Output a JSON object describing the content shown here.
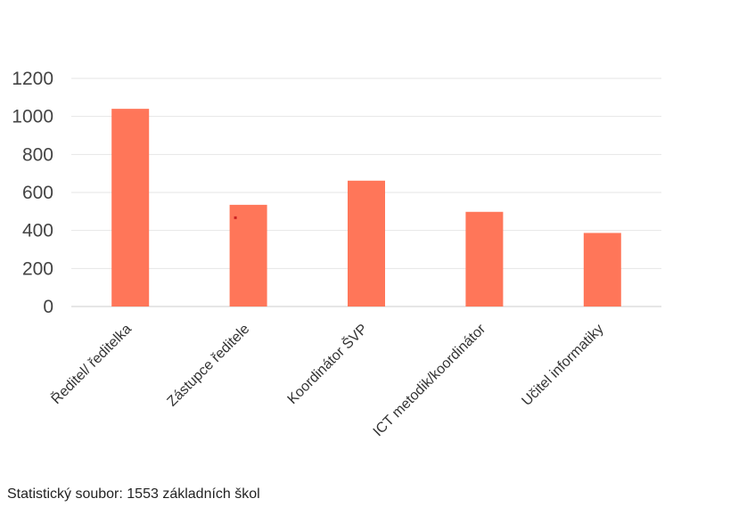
{
  "chart_data": {
    "type": "bar",
    "categories": [
      "Ředitel/ ředitelka",
      "Zástupce ředitele",
      "Koordinátor ŠVP",
      "ICT metodik/koordinátor",
      "Učitel informatiky"
    ],
    "values": [
      1040,
      535,
      662,
      498,
      387
    ],
    "ylim": [
      0,
      1200
    ],
    "yticks": [
      0,
      200,
      400,
      600,
      800,
      1000,
      1200
    ],
    "grid": true,
    "legend": "none",
    "bar_color": "#ff7659",
    "grid_color": "#e6e6e6",
    "axis_color": "#cccccc",
    "marker_color": "#cc2222"
  },
  "footnote": "Statistický soubor: 1553 základních škol"
}
